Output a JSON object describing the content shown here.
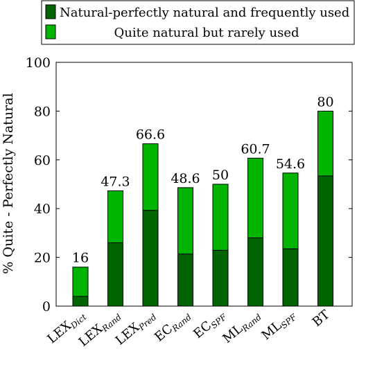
{
  "chart_data": {
    "type": "bar",
    "stacked": true,
    "categories": [
      {
        "main": "LEX",
        "sub": "Dict"
      },
      {
        "main": "LEX",
        "sub": "Rand"
      },
      {
        "main": "LEX",
        "sub": "Pred"
      },
      {
        "main": "EC",
        "sub": "Rand"
      },
      {
        "main": "EC",
        "sub": "SPF"
      },
      {
        "main": "ML",
        "sub": "Rand"
      },
      {
        "main": "ML",
        "sub": "SPF"
      },
      {
        "main": "BT",
        "sub": ""
      }
    ],
    "series": [
      {
        "name": "Natural-perfectly natural and frequently used",
        "color": "#006400",
        "values": [
          4,
          26,
          39.3,
          21.4,
          22.9,
          28,
          23.5,
          53.4
        ]
      },
      {
        "name": "Quite natural but rarely used",
        "color": "#00b400",
        "values": [
          12,
          21.3,
          27.3,
          27.2,
          27.1,
          32.7,
          31.1,
          26.6
        ]
      }
    ],
    "totals": [
      "16",
      "47.3",
      "66.6",
      "48.6",
      "50",
      "60.7",
      "54.6",
      "80"
    ],
    "ylabel": "% Quite - Perfectly Natural",
    "xlabel": "",
    "ylim": [
      0,
      100
    ],
    "yticks": [
      0,
      20,
      40,
      60,
      80,
      100
    ],
    "legend": "top-center",
    "grid": false
  }
}
